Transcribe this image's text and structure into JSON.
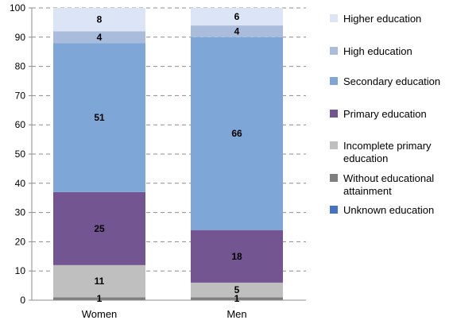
{
  "chart_data": {
    "type": "bar",
    "stacked": true,
    "categories": [
      "Women",
      "Men"
    ],
    "ylim": [
      0,
      100
    ],
    "yticks": [
      0,
      10,
      20,
      30,
      40,
      50,
      60,
      70,
      80,
      90,
      100
    ],
    "grid": "dashed-horizontal",
    "legend_position": "right",
    "series": [
      {
        "name": "Unknown education",
        "color": "#4472c4",
        "values": [
          0,
          0
        ],
        "labels": [
          "",
          ""
        ]
      },
      {
        "name": "Without educational attainment",
        "color": "#7f7f7f",
        "values": [
          1,
          1
        ],
        "labels": [
          "1",
          "1"
        ]
      },
      {
        "name": "Incomplete primary education",
        "color": "#bfbfbf",
        "values": [
          11,
          5
        ],
        "labels": [
          "11",
          "5"
        ]
      },
      {
        "name": "Primary education",
        "color": "#725591",
        "values": [
          25,
          18
        ],
        "labels": [
          "25",
          "18"
        ]
      },
      {
        "name": "Secondary education",
        "color": "#7ea6d7",
        "values": [
          51,
          66
        ],
        "labels": [
          "51",
          "66"
        ]
      },
      {
        "name": "High education",
        "color": "#aabcdb",
        "values": [
          4,
          4
        ],
        "labels": [
          "4",
          "4"
        ]
      },
      {
        "name": "Higher education",
        "color": "#dce5f6",
        "values": [
          8,
          6
        ],
        "labels": [
          "8",
          "6"
        ]
      }
    ],
    "legend_order": [
      "Higher education",
      "High education",
      "Secondary education",
      "Primary education",
      "Incomplete primary education",
      "Without educational attainment",
      "Unknown education"
    ]
  }
}
